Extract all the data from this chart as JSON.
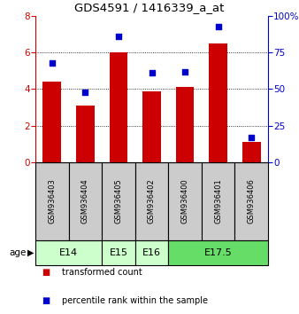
{
  "title": "GDS4591 / 1416339_a_at",
  "samples": [
    "GSM936403",
    "GSM936404",
    "GSM936405",
    "GSM936402",
    "GSM936400",
    "GSM936401",
    "GSM936406"
  ],
  "bar_values": [
    4.4,
    3.1,
    6.0,
    3.9,
    4.1,
    6.5,
    1.1
  ],
  "dot_values": [
    68,
    48,
    86,
    61,
    62,
    93,
    17
  ],
  "ylim_left": [
    0,
    8
  ],
  "ylim_right": [
    0,
    100
  ],
  "yticks_left": [
    0,
    2,
    4,
    6,
    8
  ],
  "yticks_right": [
    0,
    25,
    50,
    75,
    100
  ],
  "yticklabels_right": [
    "0",
    "25",
    "50",
    "75",
    "100%"
  ],
  "bar_color": "#cc0000",
  "dot_color": "#0000cc",
  "grid_values": [
    2,
    4,
    6
  ],
  "age_groups": [
    {
      "label": "E14",
      "start": 0,
      "end": 1,
      "color": "#ccffcc"
    },
    {
      "label": "E15",
      "start": 2,
      "end": 2,
      "color": "#ccffcc"
    },
    {
      "label": "E16",
      "start": 3,
      "end": 3,
      "color": "#ccffcc"
    },
    {
      "label": "E17.5",
      "start": 4,
      "end": 6,
      "color": "#66dd66"
    }
  ],
  "legend_bar_label": "transformed count",
  "legend_dot_label": "percentile rank within the sample",
  "bg_color_samples": "#cccccc"
}
